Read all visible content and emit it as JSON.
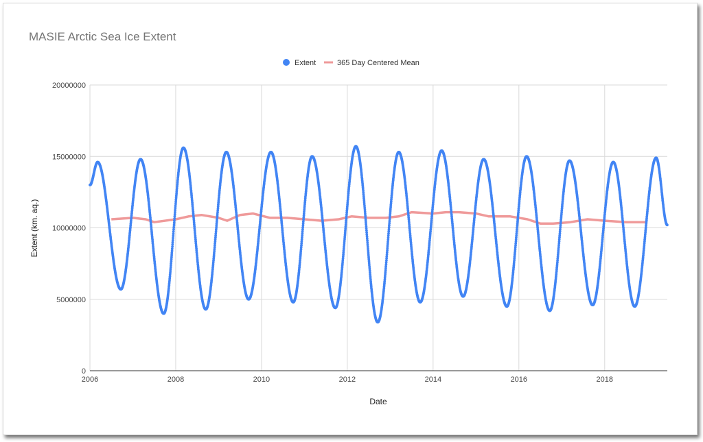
{
  "chart_data": {
    "type": "scatter",
    "title": "MASIE Arctic Sea Ice Extent",
    "xlabel": "Date",
    "ylabel": "Extent (km. aq.)",
    "xlim": [
      2006.0,
      2019.46
    ],
    "ylim": [
      0,
      20000000
    ],
    "x_ticks": [
      "2006",
      "2008",
      "2010",
      "2012",
      "2014",
      "2016",
      "2018"
    ],
    "y_ticks": [
      "0",
      "5000000",
      "10000000",
      "15000000",
      "20000000"
    ],
    "grid": true,
    "legend_position": "top",
    "series": [
      {
        "name": "Extent",
        "kind": "points",
        "color": "#4285f4",
        "maxima": [
          {
            "x": 2006.18,
            "y": 14600000
          },
          {
            "x": 2007.18,
            "y": 14800000
          },
          {
            "x": 2008.18,
            "y": 15600000
          },
          {
            "x": 2009.18,
            "y": 15300000
          },
          {
            "x": 2010.22,
            "y": 15300000
          },
          {
            "x": 2011.18,
            "y": 15000000
          },
          {
            "x": 2012.2,
            "y": 15700000
          },
          {
            "x": 2013.2,
            "y": 15300000
          },
          {
            "x": 2014.2,
            "y": 15400000
          },
          {
            "x": 2015.18,
            "y": 14800000
          },
          {
            "x": 2016.18,
            "y": 15000000
          },
          {
            "x": 2017.18,
            "y": 14700000
          },
          {
            "x": 2018.2,
            "y": 14600000
          },
          {
            "x": 2019.2,
            "y": 14900000
          }
        ],
        "minima": [
          {
            "x": 2006.72,
            "y": 5700000
          },
          {
            "x": 2007.72,
            "y": 4000000
          },
          {
            "x": 2008.7,
            "y": 4300000
          },
          {
            "x": 2009.7,
            "y": 5000000
          },
          {
            "x": 2010.74,
            "y": 4800000
          },
          {
            "x": 2011.72,
            "y": 4400000
          },
          {
            "x": 2012.71,
            "y": 3400000
          },
          {
            "x": 2013.7,
            "y": 4800000
          },
          {
            "x": 2014.7,
            "y": 5200000
          },
          {
            "x": 2015.72,
            "y": 4500000
          },
          {
            "x": 2016.72,
            "y": 4200000
          },
          {
            "x": 2017.72,
            "y": 4600000
          },
          {
            "x": 2018.7,
            "y": 4500000
          }
        ],
        "start": {
          "x": 2006.0,
          "y": 13000000
        },
        "end": {
          "x": 2019.46,
          "y": 10200000
        }
      },
      {
        "name": "365 Day Centered Mean",
        "kind": "line",
        "color": "#ef9a9a",
        "x": [
          2006.5,
          2007.0,
          2007.3,
          2007.5,
          2008.0,
          2008.3,
          2008.6,
          2009.0,
          2009.2,
          2009.5,
          2009.8,
          2010.2,
          2010.6,
          2011.0,
          2011.4,
          2011.8,
          2012.1,
          2012.5,
          2012.9,
          2013.2,
          2013.5,
          2014.0,
          2014.3,
          2014.6,
          2015.0,
          2015.3,
          2015.8,
          2016.2,
          2016.5,
          2016.8,
          2017.2,
          2017.6,
          2018.0,
          2018.5,
          2018.95
        ],
        "y": [
          10600000,
          10700000,
          10600000,
          10400000,
          10600000,
          10800000,
          10900000,
          10700000,
          10500000,
          10900000,
          11000000,
          10700000,
          10700000,
          10600000,
          10500000,
          10600000,
          10800000,
          10700000,
          10700000,
          10800000,
          11100000,
          11000000,
          11100000,
          11100000,
          11000000,
          10800000,
          10800000,
          10600000,
          10300000,
          10300000,
          10400000,
          10600000,
          10500000,
          10400000,
          10400000
        ]
      }
    ]
  }
}
